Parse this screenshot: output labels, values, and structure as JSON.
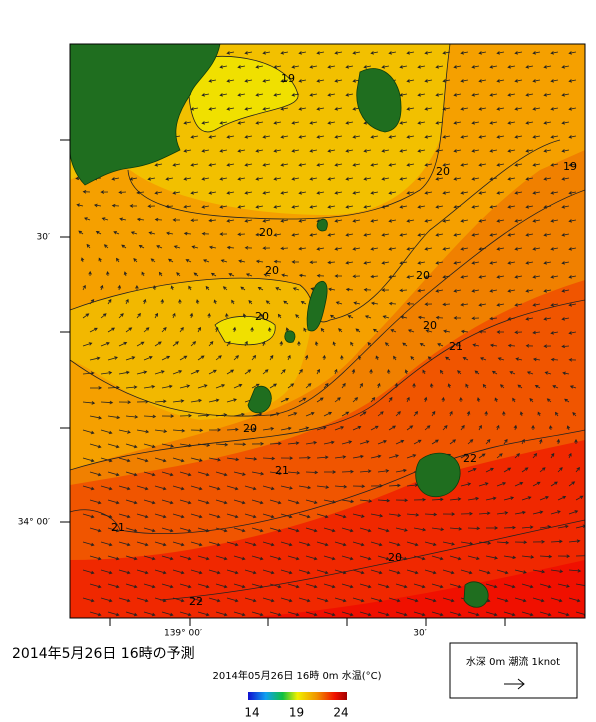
{
  "map": {
    "lat_labels": [
      "30′",
      "34° 00′"
    ],
    "lon_labels": [
      "139° 00′",
      "30′"
    ],
    "contour_labels": [
      "19",
      "20",
      "20",
      "20",
      "20",
      "20",
      "20",
      "19",
      "21",
      "20",
      "21",
      "22",
      "21",
      "22",
      "20"
    ]
  },
  "title": "2014年5月26日  16時の予測",
  "colorbar": {
    "caption": "2014年05月26日 16時 0m 水温(°C)",
    "ticks": [
      14,
      19,
      24
    ]
  },
  "legend": {
    "label": "水深 0m 潮流 1knot"
  }
}
